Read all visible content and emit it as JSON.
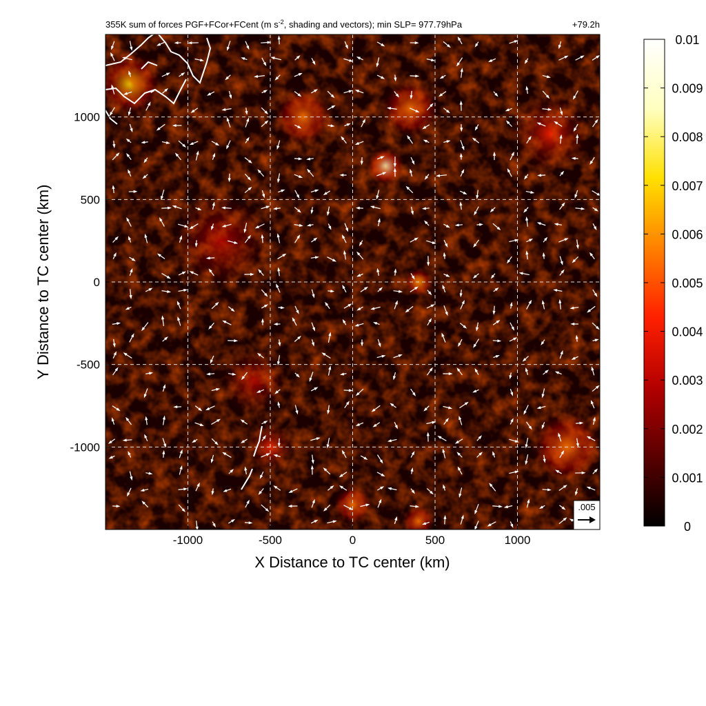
{
  "chart_data": {
    "type": "heatmap",
    "title": "355K sum of forces PGF+FCor+FCent (m s",
    "title_superscript": "-2",
    "title_rest": ", shading and vectors); min SLP= 977.79hPa",
    "time_label": "+79.2h",
    "xlabel": "X Distance to TC center (km)",
    "ylabel": "Y Distance to TC center (km)",
    "xlim": [
      -1500,
      1500
    ],
    "ylim": [
      -1500,
      1500
    ],
    "xticks": [
      -1000,
      -500,
      0,
      500,
      1000
    ],
    "xtick_labels": [
      "-1000",
      "-500",
      "0",
      "500",
      "1000"
    ],
    "yticks": [
      -1000,
      -500,
      0,
      500,
      1000
    ],
    "ytick_labels": [
      "-1000",
      "-500",
      "0",
      "500",
      "1000"
    ],
    "grid": true,
    "colorbar": {
      "min": 0,
      "max": 0.01,
      "ticks": [
        0,
        0.001,
        0.002,
        0.003,
        0.004,
        0.005,
        0.006,
        0.007,
        0.008,
        0.009,
        0.01
      ],
      "tick_labels": [
        "0",
        "0.001",
        "0.002",
        "0.003",
        "0.004",
        "0.005",
        "0.006",
        "0.007",
        "0.008",
        "0.009",
        "0.01"
      ],
      "colors": [
        "#000000",
        "#5a0000",
        "#b40000",
        "#ff2000",
        "#ff8000",
        "#ffe000",
        "#ffffc0",
        "#ffffff"
      ]
    },
    "reference_vector": {
      "label": ".005",
      "value": 0.005
    },
    "hotspots": [
      {
        "x": 200,
        "y": 700,
        "r": 120,
        "v": 0.009
      },
      {
        "x": 350,
        "y": 1050,
        "r": 180,
        "v": 0.006
      },
      {
        "x": -1350,
        "y": 1200,
        "r": 200,
        "v": 0.007
      },
      {
        "x": -300,
        "y": 1000,
        "r": 180,
        "v": 0.005
      },
      {
        "x": 400,
        "y": 0,
        "r": 90,
        "v": 0.007
      },
      {
        "x": 1300,
        "y": -1000,
        "r": 220,
        "v": 0.006
      },
      {
        "x": 0,
        "y": -1350,
        "r": 120,
        "v": 0.006
      },
      {
        "x": 400,
        "y": -1450,
        "r": 100,
        "v": 0.006
      },
      {
        "x": -600,
        "y": -600,
        "r": 200,
        "v": 0.003
      },
      {
        "x": -800,
        "y": 250,
        "r": 300,
        "v": 0.003
      },
      {
        "x": 1200,
        "y": 900,
        "r": 250,
        "v": 0.004
      },
      {
        "x": -500,
        "y": -1000,
        "r": 150,
        "v": 0.004
      }
    ],
    "coastline_color": "#ffffff",
    "vector_color": "#ffffff"
  }
}
